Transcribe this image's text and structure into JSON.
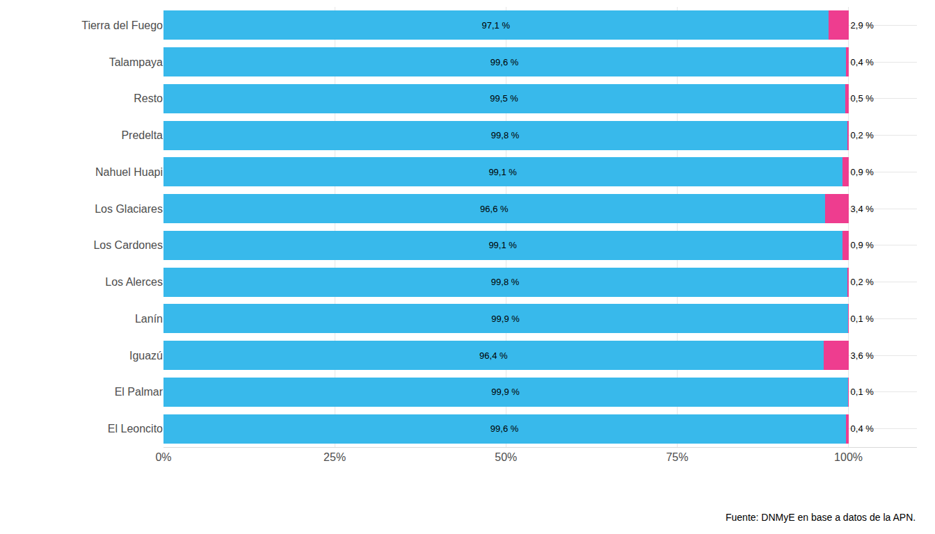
{
  "chart_data": {
    "type": "bar",
    "orientation": "horizontal",
    "stacked": true,
    "data_labels": true,
    "grid": true,
    "categories": [
      "Tierra del Fuego",
      "Talampaya",
      "Resto",
      "Predelta",
      "Nahuel Huapi",
      "Los Glaciares",
      "Los Cardones",
      "Los Alerces",
      "Lanín",
      "Iguazú",
      "El Palmar",
      "El Leoncito"
    ],
    "series": [
      {
        "color": "#38b9eb",
        "values": [
          97.1,
          99.6,
          99.5,
          99.8,
          99.1,
          96.6,
          99.1,
          99.8,
          99.9,
          96.4,
          99.9,
          99.6
        ],
        "value_labels": [
          "97,1 %",
          "99,6 %",
          "99,5 %",
          "99,8 %",
          "99,1 %",
          "96,6 %",
          "99,1 %",
          "99,8 %",
          "99,9 %",
          "96,4 %",
          "99,9 %",
          "99,6 %"
        ]
      },
      {
        "color": "#ee3d8f",
        "values": [
          2.9,
          0.4,
          0.5,
          0.2,
          0.9,
          3.4,
          0.9,
          0.2,
          0.1,
          3.6,
          0.1,
          0.4
        ],
        "value_labels": [
          "2,9 %",
          "0,4 %",
          "0,5 %",
          "0,2 %",
          "0,9 %",
          "3,4 %",
          "0,9 %",
          "0,2 %",
          "0,1 %",
          "3,6 %",
          "0,1 %",
          "0,4 %"
        ]
      }
    ],
    "xlim": [
      0,
      110
    ],
    "xticks": [
      {
        "value": 0,
        "label": "0%"
      },
      {
        "value": 25,
        "label": "25%"
      },
      {
        "value": 50,
        "label": "50%"
      },
      {
        "value": 75,
        "label": "75%"
      },
      {
        "value": 100,
        "label": "100%"
      }
    ],
    "caption": "Fuente: DNMyE en base a datos de la APN."
  }
}
